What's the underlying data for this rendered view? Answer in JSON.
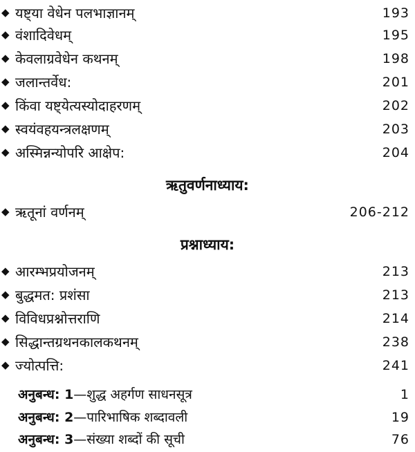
{
  "bullet_icon": "diamond-bullet",
  "sections": [
    {
      "heading": "",
      "items": [
        {
          "title": "यष्ट्या वेधेन पलभाज्ञानम्",
          "page": "193"
        },
        {
          "title": "वंशादिवेधम्",
          "page": "195"
        },
        {
          "title": "केवलाग्रवेधेन कथनम्",
          "page": "198"
        },
        {
          "title": "जलान्तर्वेध:",
          "page": "201"
        },
        {
          "title": "किंवा यष्ट्येत्यस्योदाहरणम्",
          "page": "202"
        },
        {
          "title": "स्वयंवहयन्त्रलक्षणम्",
          "page": "203"
        },
        {
          "title": "अस्मिन्नन्योपरि आक्षेप:",
          "page": "204"
        }
      ]
    },
    {
      "heading": "ऋतुवर्णनाध्याय:",
      "items": [
        {
          "title": "ऋतूनां वर्णनम्",
          "page": "206-212"
        }
      ]
    },
    {
      "heading": "प्रश्नाध्याय:",
      "items": [
        {
          "title": "आरम्भप्रयोजनम्",
          "page": "213"
        },
        {
          "title": "बुद्धमत: प्रशंसा",
          "page": "213"
        },
        {
          "title": "विविधप्रश्नोत्तराणि",
          "page": "214"
        },
        {
          "title": "सिद्धान्तग्रथनकालकथनम्",
          "page": "238"
        },
        {
          "title": "ज्योत्पत्ति:",
          "page": "241"
        }
      ]
    }
  ],
  "appendices": [
    {
      "label": "अनुबन्ध: 1",
      "title": "—शुद्ध अहर्गण साधनसूत्र",
      "page": "1"
    },
    {
      "label": "अनुबन्ध: 2",
      "title": "—पारिभाषिक शब्दावली",
      "page": "19"
    },
    {
      "label": "अनुबन्ध: 3",
      "title": "—संख्या शब्दों की सूची",
      "page": "76"
    }
  ]
}
